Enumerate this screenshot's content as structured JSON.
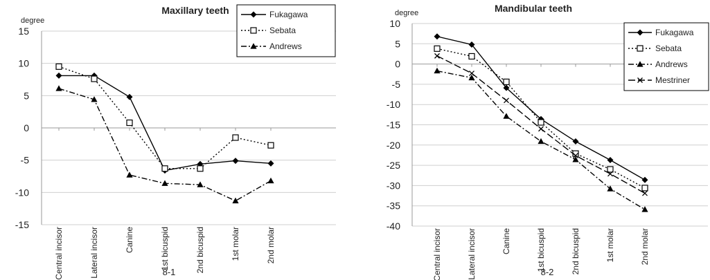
{
  "chart_data": [
    {
      "type": "line",
      "panel_label": "8-1",
      "title": "Maxillary teeth",
      "ylabel": "degree",
      "ylim": [
        -15,
        15
      ],
      "yticks": [
        -15,
        -10,
        -5,
        0,
        5,
        10,
        15
      ],
      "categories": [
        "Central incisor",
        "Lateral incisor",
        "Canine",
        "1st bicuspid",
        "2nd bicuspid",
        "1st molar",
        "2nd molar"
      ],
      "legend_position": "top-right",
      "grid": true,
      "series": [
        {
          "name": "Fukagawa",
          "values": [
            8.1,
            8.1,
            4.8,
            -6.6,
            -5.6,
            -5.1,
            -5.5
          ],
          "color": "#000000",
          "line": "solid",
          "marker": "diamond-filled"
        },
        {
          "name": "Sebata",
          "values": [
            9.5,
            7.6,
            0.8,
            -6.3,
            -6.3,
            -1.5,
            -2.7
          ],
          "color": "#000000",
          "line": "dotted",
          "marker": "square-open"
        },
        {
          "name": "Andrews",
          "values": [
            6.1,
            4.4,
            -7.3,
            -8.6,
            -8.8,
            -11.3,
            -8.2
          ],
          "color": "#000000",
          "line": "dashdot",
          "marker": "triangle-filled"
        }
      ]
    },
    {
      "type": "line",
      "panel_label": "8-2",
      "title": "Mandibular teeth",
      "ylabel": "degree",
      "ylim": [
        -40,
        10
      ],
      "yticks": [
        -40,
        -35,
        -30,
        -25,
        -20,
        -15,
        -10,
        -5,
        0,
        5,
        10
      ],
      "categories": [
        "Central incisor",
        "Lateral incisor",
        "Canine",
        "1st bicuspid",
        "2nd bicuspid",
        "1st molar",
        "2nd molar"
      ],
      "legend_position": "top-right",
      "grid": true,
      "series": [
        {
          "name": "Fukagawa",
          "values": [
            6.8,
            4.8,
            -5.9,
            -13.6,
            -19.1,
            -23.7,
            -28.6
          ],
          "color": "#000000",
          "line": "solid",
          "marker": "diamond-filled"
        },
        {
          "name": "Sebata",
          "values": [
            3.8,
            1.9,
            -4.4,
            -14.4,
            -22.1,
            -26.0,
            -30.6
          ],
          "color": "#000000",
          "line": "dotted",
          "marker": "square-open"
        },
        {
          "name": "Andrews",
          "values": [
            -1.7,
            -3.4,
            -12.9,
            -19.1,
            -23.6,
            -30.8,
            -35.9
          ],
          "color": "#000000",
          "line": "dashdot",
          "marker": "triangle-filled"
        },
        {
          "name": "Mestriner",
          "values": [
            2.0,
            -2.3,
            -9.0,
            -16.0,
            -22.6,
            -27.1,
            -31.9
          ],
          "color": "#000000",
          "line": "longdash",
          "marker": "cross"
        }
      ]
    }
  ]
}
